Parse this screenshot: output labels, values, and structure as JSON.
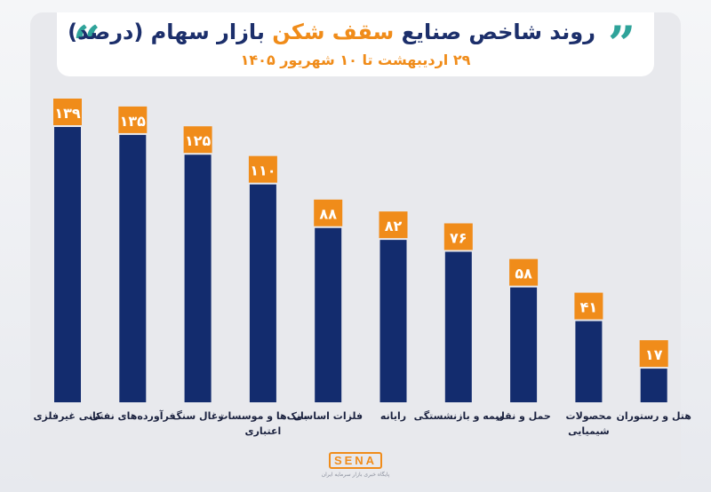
{
  "header": {
    "title_main": "روند شاخص صنایع ",
    "title_accent": "سقف شکن",
    "title_tail": " بازار سهام (درصد)",
    "subtitle": "۲۹ اردیبهشت تا ۱۰ شهریور ۱۴۰۵"
  },
  "logo": {
    "name": "SENA",
    "tagline": "پایگاه خبری بازار سرمایه ایران"
  },
  "colors": {
    "bar": "#132c6e",
    "label_box": "#f08c1a",
    "label_text": "#ffffff",
    "category_text": "#1c2340",
    "title_accent": "#f08c1a",
    "quote": "#2fa39a"
  },
  "chart_data": {
    "type": "bar",
    "categories": [
      "کانی غیرفلزی",
      "فرآورده‌های نفتی",
      "زغال سنگ",
      "بانک‌ها و موسسات اعتباری",
      "فلزات اساسی",
      "رایانه",
      "بیمه و بازنشستگی",
      "حمل و نقل",
      "محصولات شیمیایی",
      "هتل و رستوران"
    ],
    "category_lines": [
      [
        "کانی غیرفلزی"
      ],
      [
        "فرآورده‌های نفتی"
      ],
      [
        "زغال سنگ"
      ],
      [
        "بانک‌ها و موسسات",
        "اعتباری"
      ],
      [
        "فلزات اساسی"
      ],
      [
        "رایانه"
      ],
      [
        "بیمه و بازنشستگی"
      ],
      [
        "حمل و نقل"
      ],
      [
        "محصولات",
        "شیمیایی"
      ],
      [
        "هتل و رستوران"
      ]
    ],
    "values": [
      139,
      135,
      125,
      110,
      88,
      82,
      76,
      58,
      41,
      17
    ],
    "value_labels": [
      "۱۳۹",
      "۱۳۵",
      "۱۲۵",
      "۱۱۰",
      "۸۸",
      "۸۲",
      "۷۶",
      "۵۸",
      "۴۱",
      "۱۷"
    ],
    "ylim": [
      0,
      139
    ],
    "grid": false,
    "legend": "none"
  }
}
